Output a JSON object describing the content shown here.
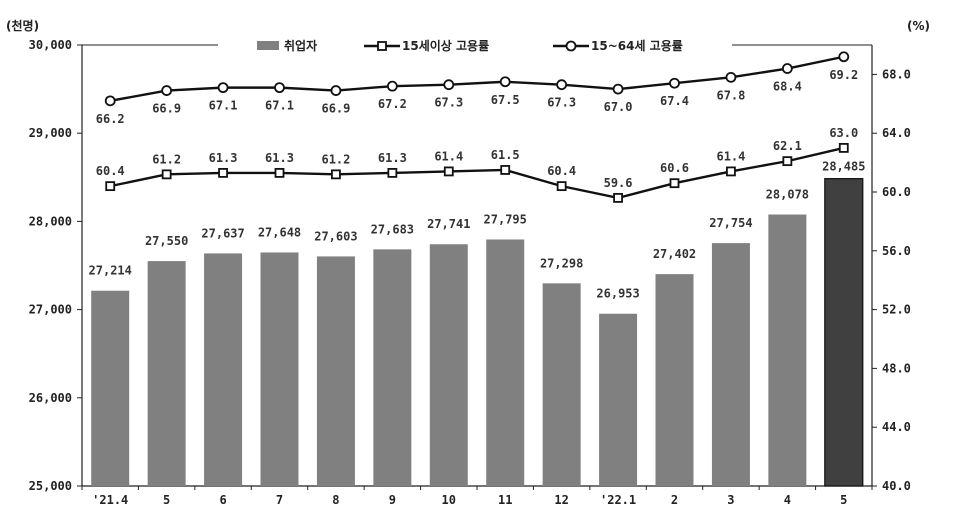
{
  "chart_data": {
    "type": "bar",
    "categories": [
      "'21.4",
      "5",
      "6",
      "7",
      "8",
      "9",
      "10",
      "11",
      "12",
      "'22.1",
      "2",
      "3",
      "4",
      "5"
    ],
    "left_axis": {
      "unit": "(천명)",
      "ylim": [
        25000,
        30000
      ],
      "ticks": [
        "25,000",
        "26,000",
        "27,000",
        "28,000",
        "29,000",
        "30,000"
      ]
    },
    "right_axis": {
      "unit": "(%)",
      "ylim": [
        40.0,
        70.0
      ],
      "ticks": [
        "40.0",
        "44.0",
        "48.0",
        "52.0",
        "56.0",
        "60.0",
        "64.0",
        "68.0"
      ]
    },
    "series": [
      {
        "name": "취업자",
        "kind": "bar",
        "axis": "left",
        "values": [
          27214,
          27550,
          27637,
          27648,
          27603,
          27683,
          27741,
          27795,
          27298,
          26953,
          27402,
          27754,
          28078,
          28485
        ],
        "labels": [
          "27,214",
          "27,550",
          "27,637",
          "27,648",
          "27,603",
          "27,683",
          "27,741",
          "27,795",
          "27,298",
          "26,953",
          "27,402",
          "27,754",
          "28,078",
          "28,485"
        ],
        "color": "#808080",
        "highlight_color": "#404040",
        "highlight_index": 13
      },
      {
        "name": "15세이상 고용률",
        "kind": "line",
        "marker": "square",
        "axis": "right",
        "values": [
          60.4,
          61.2,
          61.3,
          61.3,
          61.2,
          61.3,
          61.4,
          61.5,
          60.4,
          59.6,
          60.6,
          61.4,
          62.1,
          63.0
        ],
        "labels": [
          "60.4",
          "61.2",
          "61.3",
          "61.3",
          "61.2",
          "61.3",
          "61.4",
          "61.5",
          "60.4",
          "59.6",
          "60.6",
          "61.4",
          "62.1",
          "63.0"
        ]
      },
      {
        "name": "15~64세 고용률",
        "kind": "line",
        "marker": "circle",
        "axis": "right",
        "values": [
          66.2,
          66.9,
          67.1,
          67.1,
          66.9,
          67.2,
          67.3,
          67.5,
          67.3,
          67.0,
          67.4,
          67.8,
          68.4,
          69.2
        ],
        "labels": [
          "66.2",
          "66.9",
          "67.1",
          "67.1",
          "66.9",
          "67.2",
          "67.3",
          "67.5",
          "67.3",
          "67.0",
          "67.4",
          "67.8",
          "68.4",
          "69.2"
        ]
      }
    ],
    "legend_position": "top",
    "grid": false
  }
}
